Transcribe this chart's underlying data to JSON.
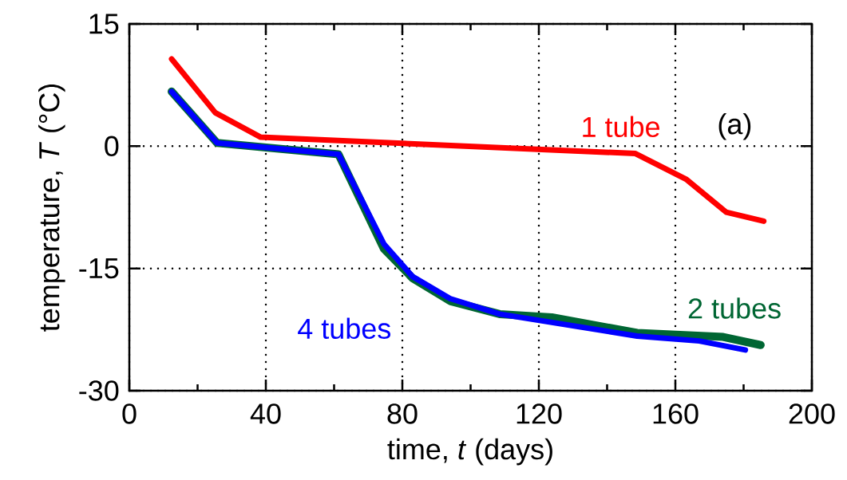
{
  "chart_data": {
    "type": "line",
    "xlabel": "time, *t* (days)",
    "ylabel": "temperature,  *T* (°C)",
    "annotations": [
      "(a)"
    ],
    "xlim": [
      0,
      200
    ],
    "ylim": [
      -30,
      15
    ],
    "xticks": [
      {
        "value": 0,
        "label": "0"
      },
      40,
      80,
      120,
      160,
      200
    ],
    "yticks": [
      -30,
      -15,
      0,
      15
    ],
    "grid": true,
    "marker": "none",
    "line_style": "solid",
    "series": [
      {
        "name": "1 tube",
        "color": "#ff0000",
        "x": [
          12.4,
          25.2,
          38.5,
          148.3,
          163.3,
          174.9,
          185.9
        ],
        "values": [
          10.7,
          4.1,
          1.1,
          -0.9,
          -4.1,
          -8.1,
          -9.2
        ]
      },
      {
        "name": "2 tubes",
        "color": "#006633",
        "x": [
          12.4,
          25.7,
          61.3,
          74.6,
          83.0,
          94.0,
          108.5,
          123.8,
          148.8,
          174.0,
          185.0
        ],
        "values": [
          6.7,
          0.4,
          -1.0,
          -12.6,
          -16.2,
          -19.0,
          -20.6,
          -21.0,
          -22.9,
          -23.4,
          -24.4
        ]
      },
      {
        "name": "4 tubes",
        "color": "#0000ff",
        "x": [
          12.4,
          25.7,
          61.3,
          74.6,
          83.0,
          94.0,
          108.5,
          148.8,
          167.0,
          180.5
        ],
        "values": [
          6.7,
          0.4,
          -1.0,
          -12.0,
          -16.0,
          -18.7,
          -20.6,
          -23.3,
          -23.9,
          -25.0
        ]
      }
    ]
  }
}
